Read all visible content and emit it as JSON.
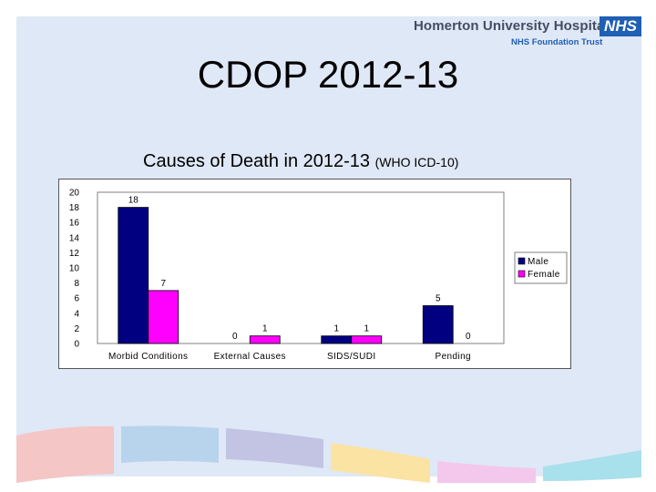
{
  "logo": {
    "name": "Homerton University Hospital",
    "subtitle": "NHS Foundation Trust",
    "badge": "NHS"
  },
  "slide": {
    "title": "CDOP 2012-13",
    "subtitle_main": "Causes of Death in 2012-13",
    "subtitle_note": "(WHO ICD-10)"
  },
  "colors": {
    "male": "#000080",
    "female": "#ff00ff",
    "panel": "#dfe8f6"
  },
  "chart_data": {
    "type": "bar",
    "categories": [
      "Morbid Conditions",
      "External Causes",
      "SIDS/SUDI",
      "Pending"
    ],
    "series": [
      {
        "name": "Male",
        "values": [
          18,
          0,
          1,
          5
        ]
      },
      {
        "name": "Female",
        "values": [
          7,
          1,
          1,
          0
        ]
      }
    ],
    "y_ticks": [
      "0",
      "2",
      "4",
      "6",
      "8",
      "10",
      "12",
      "14",
      "16",
      "18",
      "20"
    ],
    "ylim": [
      0,
      20
    ],
    "grid": false,
    "legend": "right"
  }
}
